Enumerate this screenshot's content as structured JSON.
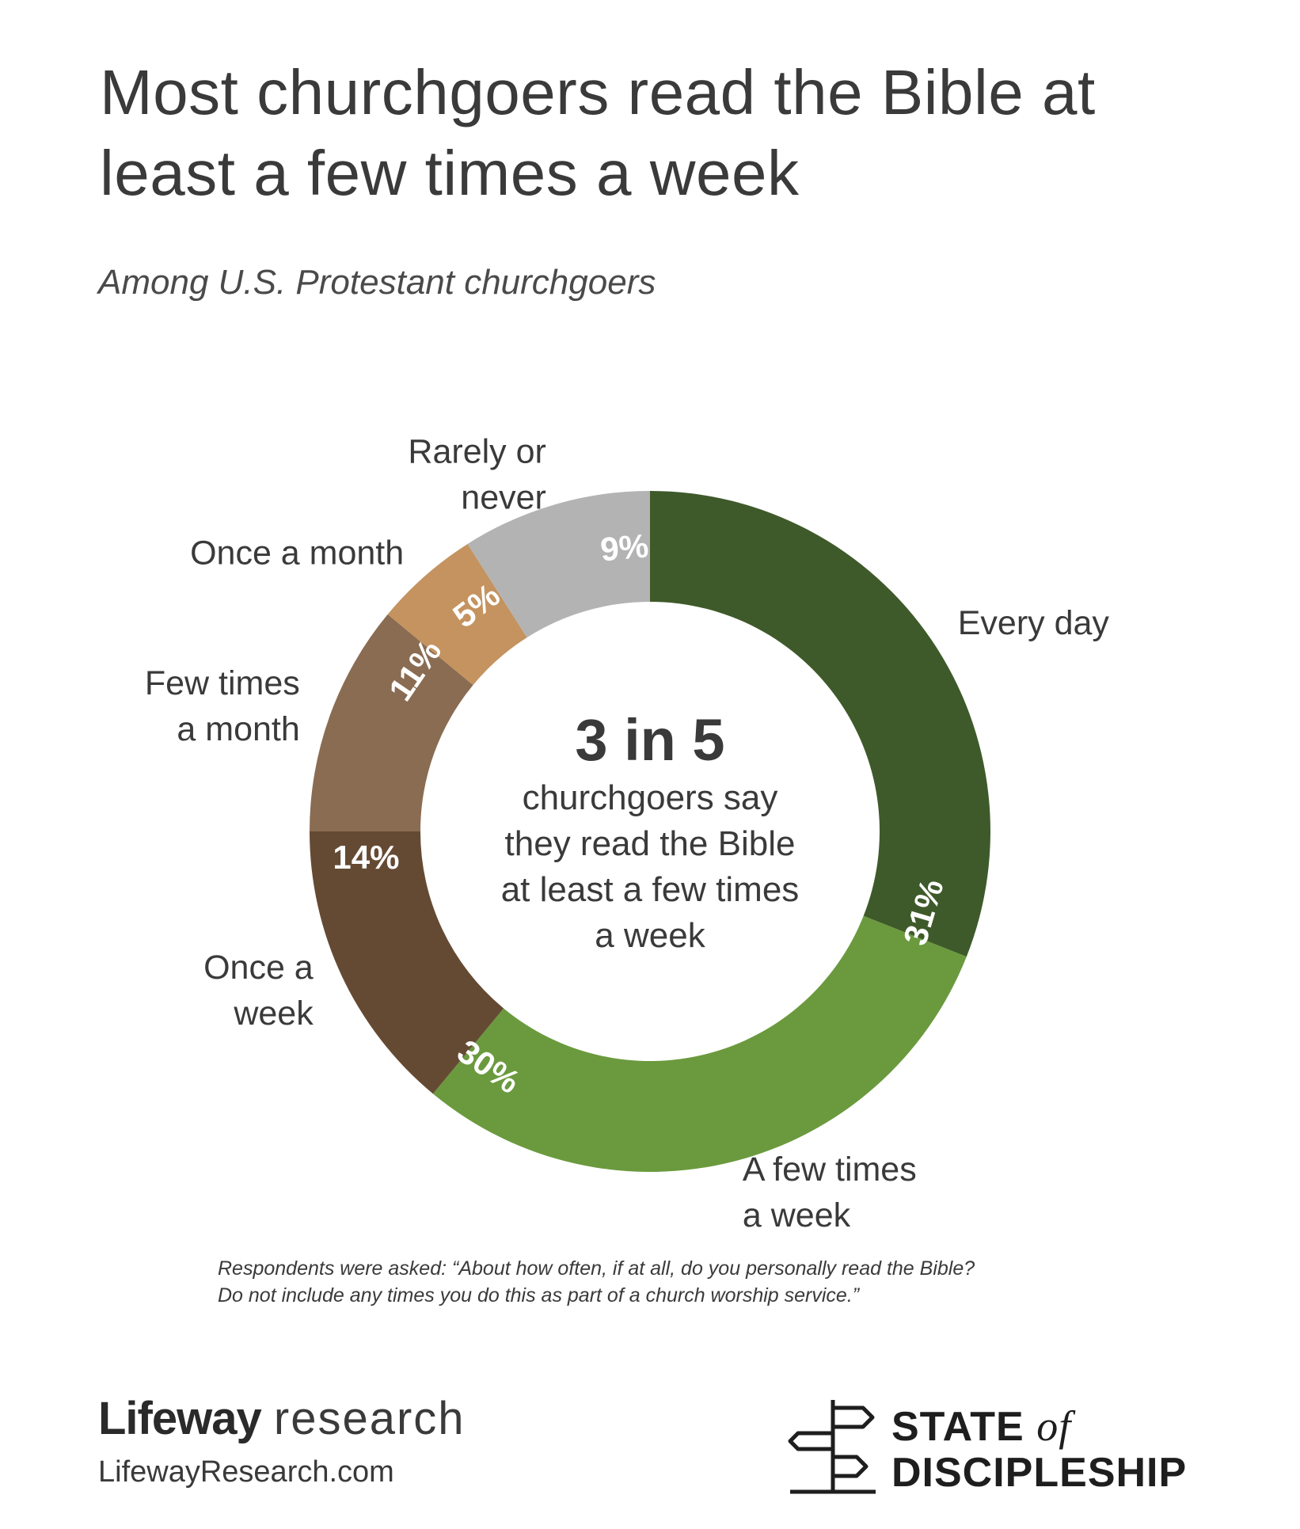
{
  "header": {
    "title": "Most churchgoers read the Bible at least a few times a week",
    "subtitle": "Among U.S. Protestant churchgoers"
  },
  "center": {
    "headline": "3 in 5",
    "line1": "churchgoers say",
    "line2": "they read the Bible",
    "line3": "at least a few times",
    "line4": "a week"
  },
  "chart_data": {
    "type": "pie",
    "donut": true,
    "start": "top, clockwise",
    "categories": [
      "Every day",
      "A few times a week",
      "Once a week",
      "Few times a month",
      "Once a month",
      "Rarely or never"
    ],
    "values": [
      31,
      30,
      14,
      11,
      5,
      9
    ],
    "value_labels": [
      "31%",
      "30%",
      "14%",
      "11%",
      "5%",
      "9%"
    ],
    "category_label_lines": [
      [
        "Every day"
      ],
      [
        "A few times",
        "a week"
      ],
      [
        "Once a",
        "week"
      ],
      [
        "Few times",
        "a month"
      ],
      [
        "Once a month"
      ],
      [
        "Rarely or",
        "never"
      ]
    ],
    "colors": [
      "#3f5a2a",
      "#6a9a3d",
      "#654a33",
      "#8a6c52",
      "#c4935f",
      "#b3b3b3"
    ]
  },
  "footnote": {
    "line1": "Respondents were asked: “About how often, if at all, do you personally read the Bible?",
    "line2": "Do not include any times you do this as part of a church worship service.”"
  },
  "branding": {
    "lifeway_bold": "Lifeway",
    "lifeway_light": "research",
    "url": "LifewayResearch.com",
    "sod_line1": "STATE",
    "sod_of": "of",
    "sod_line2": "DISCIPLESHIP"
  }
}
